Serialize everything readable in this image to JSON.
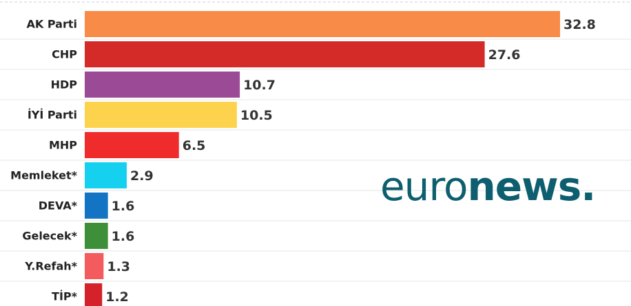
{
  "chart_data": {
    "type": "bar",
    "orientation": "horizontal",
    "title": "",
    "xlabel": "",
    "ylabel": "",
    "categories": [
      "AK Parti",
      "CHP",
      "HDP",
      "İYİ Parti",
      "MHP",
      "Memleket*",
      "DEVA*",
      "Gelecek*",
      "Y.Refah*",
      "TİP*"
    ],
    "values": [
      32.8,
      27.6,
      10.7,
      10.5,
      6.5,
      2.9,
      1.6,
      1.6,
      1.3,
      1.2
    ],
    "value_labels": [
      "32.8",
      "27.6",
      "10.7",
      "10.5",
      "6.5",
      "2.9",
      "1.6",
      "1.6",
      "1.3",
      "1.2"
    ],
    "colors": [
      "#f88b47",
      "#d42a28",
      "#9b4a96",
      "#fdd34d",
      "#f02b2b",
      "#16d0ef",
      "#1374c3",
      "#3e8f3a",
      "#f35b5e",
      "#d5212a"
    ],
    "xlim": [
      0,
      35
    ],
    "grid": true,
    "legend": "none"
  },
  "watermark": {
    "light": "euro",
    "bold": "news",
    "dot": ".",
    "color": "#0d5e6e"
  }
}
